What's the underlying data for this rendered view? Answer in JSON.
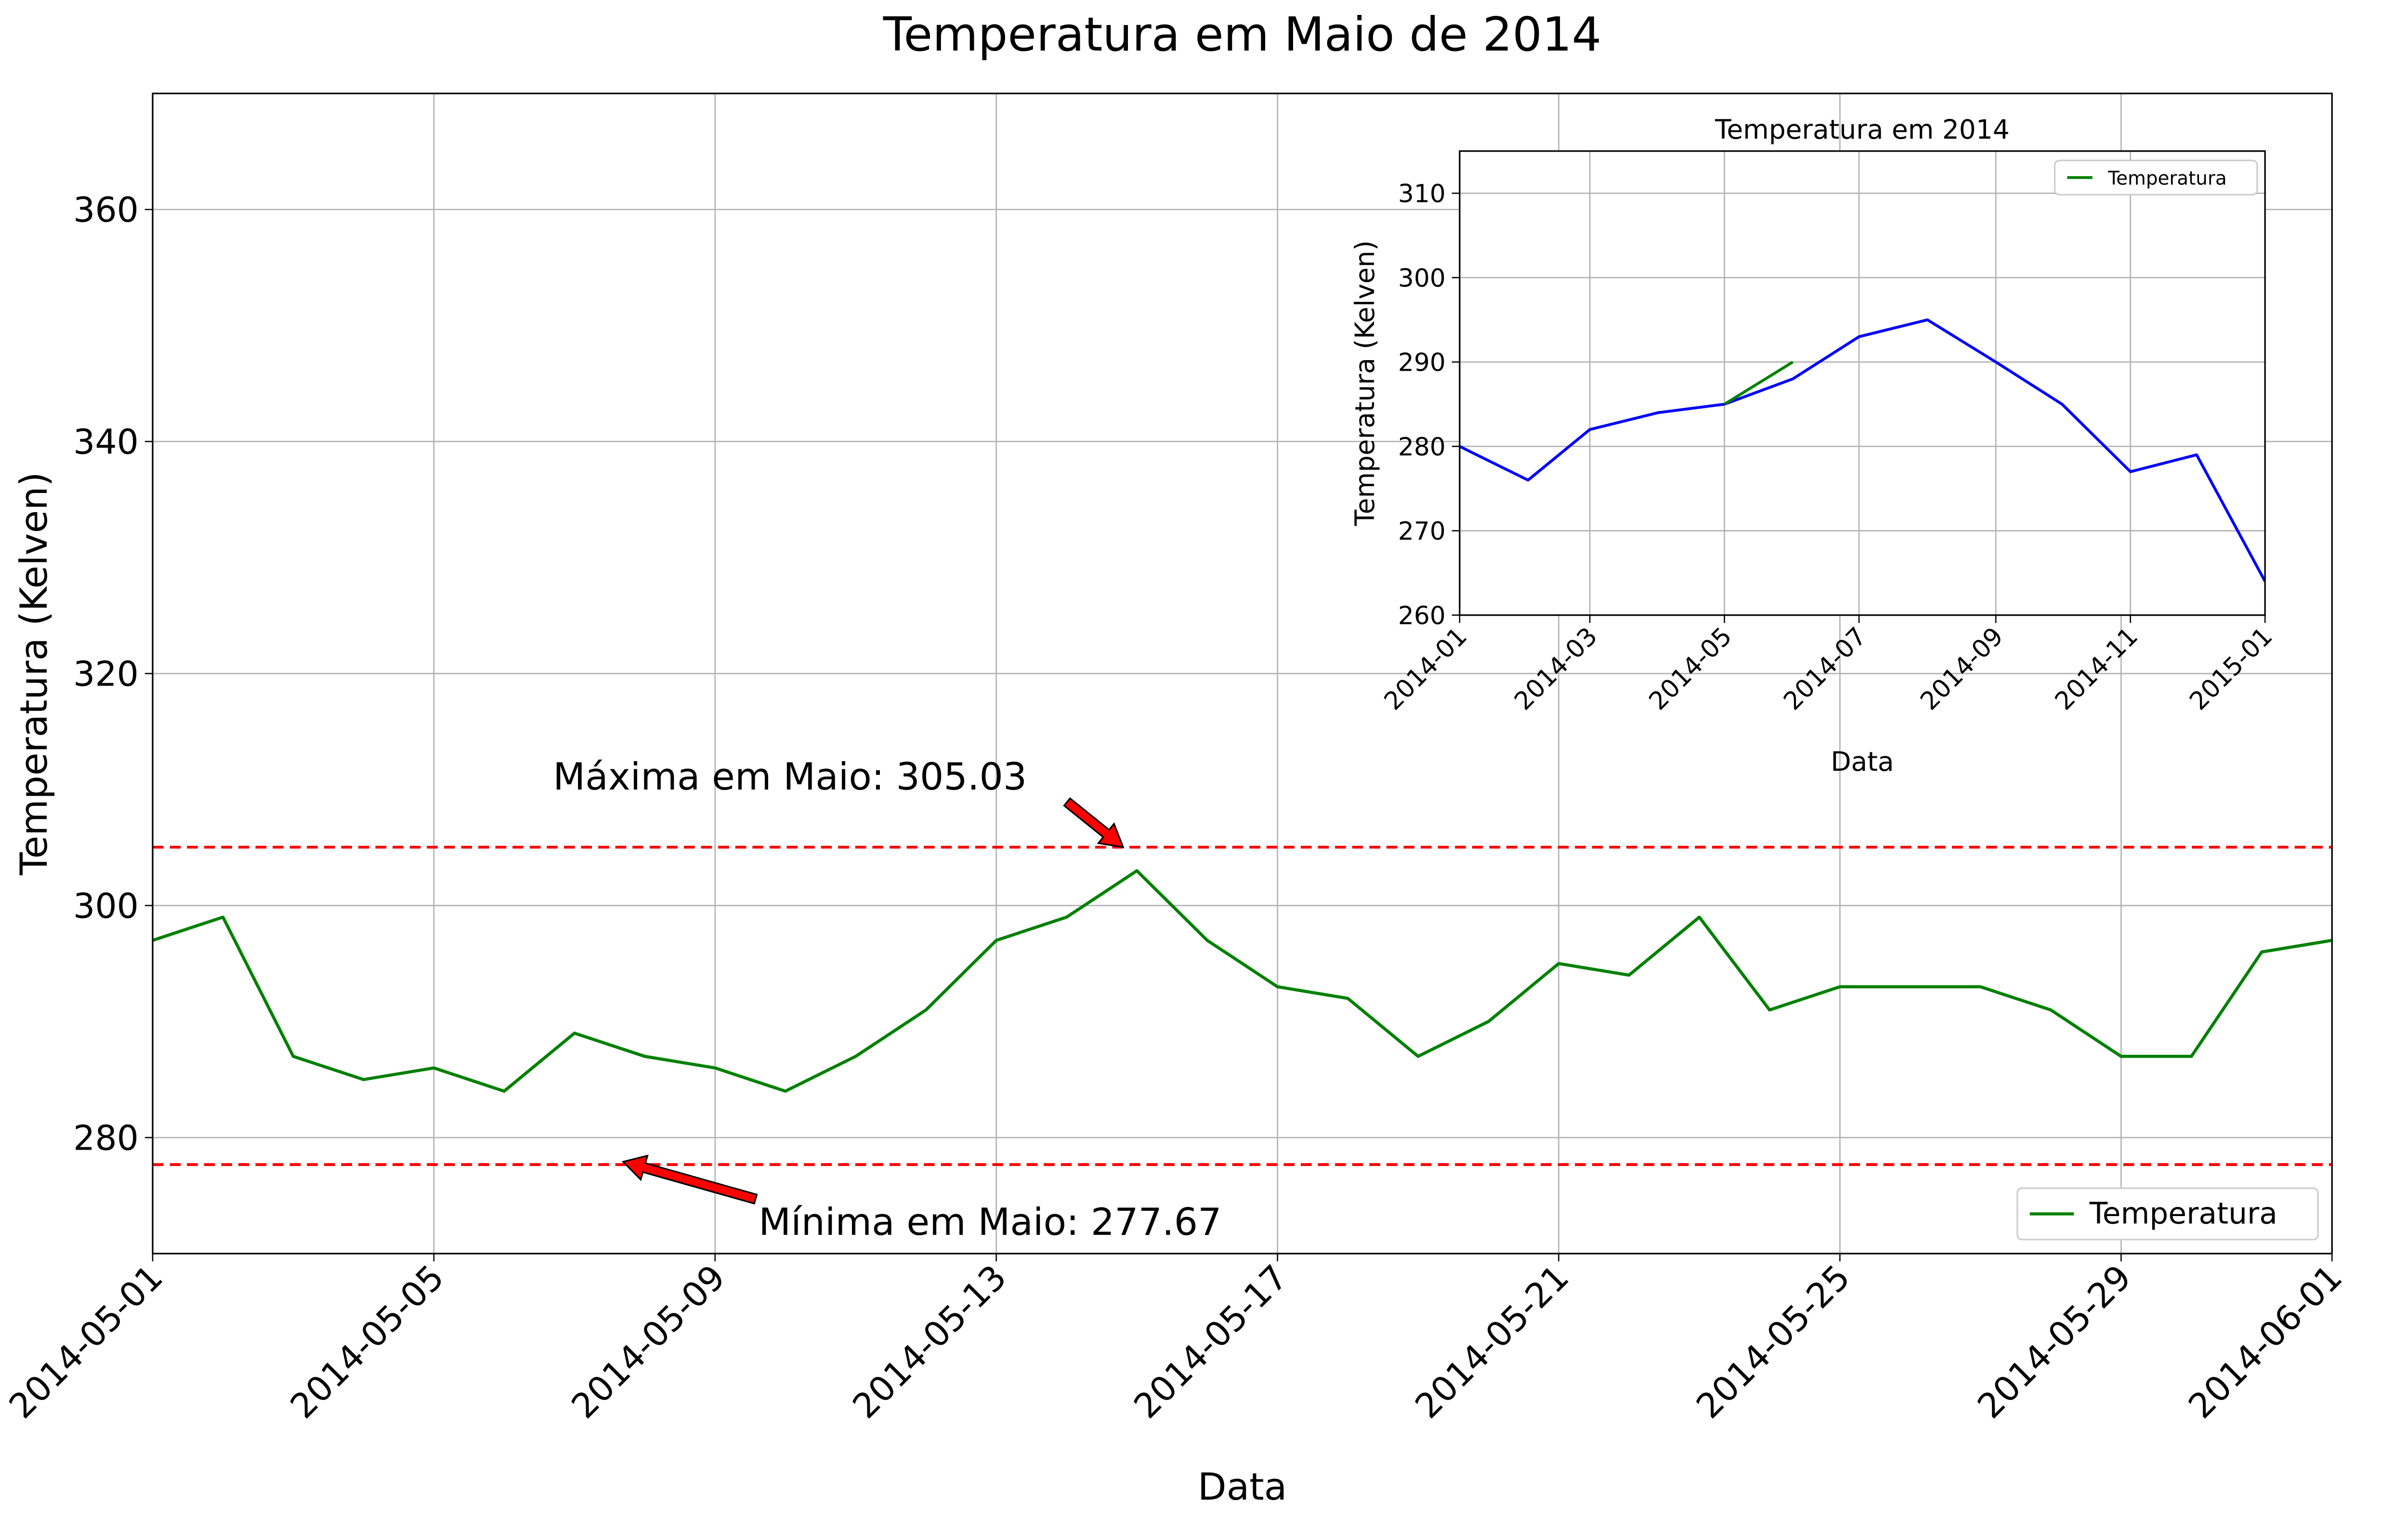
{
  "chart_data": [
    {
      "type": "line",
      "title": "Temperatura em Maio de 2014",
      "xlabel": "Data",
      "ylabel": "Temperatura (Kelven)",
      "x": [
        "2014-05-01",
        "2014-05-02",
        "2014-05-03",
        "2014-05-04",
        "2014-05-05",
        "2014-05-06",
        "2014-05-07",
        "2014-05-08",
        "2014-05-09",
        "2014-05-10",
        "2014-05-11",
        "2014-05-12",
        "2014-05-13",
        "2014-05-14",
        "2014-05-15",
        "2014-05-16",
        "2014-05-17",
        "2014-05-18",
        "2014-05-19",
        "2014-05-20",
        "2014-05-21",
        "2014-05-22",
        "2014-05-23",
        "2014-05-24",
        "2014-05-25",
        "2014-05-26",
        "2014-05-27",
        "2014-05-28",
        "2014-05-29",
        "2014-05-30",
        "2014-05-31",
        "2014-06-01"
      ],
      "series": [
        {
          "name": "Temperatura",
          "color": "#008000",
          "values": [
            297,
            299,
            287,
            285,
            286,
            284,
            289,
            287,
            286,
            284,
            287,
            291,
            297,
            299,
            303,
            297,
            293,
            292,
            287,
            290,
            295,
            294,
            299,
            291,
            293,
            293,
            293,
            291,
            287,
            287,
            296,
            297
          ]
        }
      ],
      "xlim": [
        "2014-05-01",
        "2014-06-01"
      ],
      "ylim": [
        270,
        370
      ],
      "xticks": [
        "2014-05-01",
        "2014-05-05",
        "2014-05-09",
        "2014-05-13",
        "2014-05-17",
        "2014-05-21",
        "2014-05-25",
        "2014-05-29",
        "2014-06-01"
      ],
      "yticks": [
        280,
        300,
        320,
        340,
        360
      ],
      "grid": true,
      "legend": "lower right",
      "hlines": [
        {
          "value": 305.03,
          "color": "#ff0000"
        },
        {
          "value": 277.67,
          "color": "#ff0000"
        }
      ],
      "annotations": [
        {
          "text": "Máxima em Maio: 305.03"
        },
        {
          "text": "Mínima em Maio: 277.67"
        }
      ]
    },
    {
      "type": "line",
      "title": "Temperatura em 2014",
      "xlabel": "Data",
      "ylabel": "Temperatura (Kelven)",
      "series": [
        {
          "color": "#0000ff",
          "x": [
            "2014-01",
            "2014-02",
            "2014-03",
            "2014-04",
            "2014-05",
            "2014-06",
            "2014-07",
            "2014-08",
            "2014-09",
            "2014-10",
            "2014-11",
            "2014-12",
            "2015-01"
          ],
          "values": [
            280,
            276,
            282,
            284,
            285,
            288,
            293,
            295,
            290,
            285,
            277,
            279,
            264
          ]
        },
        {
          "name": "Temperatura",
          "color": "#008000",
          "x": [
            "2014-05",
            "2014-06"
          ],
          "values": [
            285,
            290
          ]
        }
      ],
      "xlim": [
        "2014-01",
        "2015-01"
      ],
      "ylim": [
        260,
        315
      ],
      "xticks": [
        "2014-01",
        "2014-03",
        "2014-05",
        "2014-07",
        "2014-09",
        "2014-11",
        "2015-01"
      ],
      "yticks": [
        260,
        270,
        280,
        290,
        300,
        310
      ],
      "grid": true,
      "legend": "upper right"
    }
  ]
}
